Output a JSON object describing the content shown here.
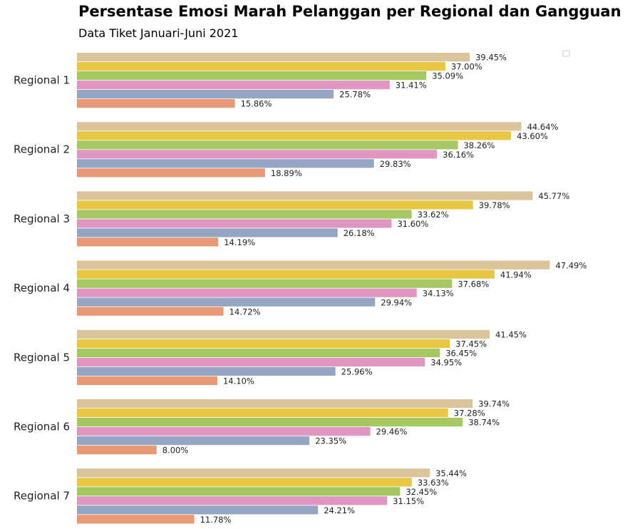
{
  "chart_data": {
    "type": "bar",
    "orientation": "horizontal",
    "title": "Persentase Emosi Marah Pelanggan per Regional dan Gangguan",
    "subtitle": "Data Tiket Januari-Juni 2021",
    "categories": [
      "Regional 1",
      "Regional 2",
      "Regional 3",
      "Regional 4",
      "Regional 5",
      "Regional 6",
      "Regional 7"
    ],
    "value_suffix": "%",
    "xlim": [
      0,
      52
    ],
    "grid": false,
    "legend": "top-right (empty)",
    "series": [
      {
        "color": "#d9c49c",
        "values": [
          39.45,
          44.64,
          45.77,
          47.49,
          41.45,
          39.74,
          35.44
        ]
      },
      {
        "color": "#e8c843",
        "values": [
          37.0,
          43.6,
          39.78,
          41.94,
          37.45,
          37.28,
          33.63
        ]
      },
      {
        "color": "#a5c863",
        "values": [
          35.09,
          38.26,
          33.62,
          37.68,
          36.45,
          38.74,
          32.45
        ]
      },
      {
        "color": "#df97c1",
        "values": [
          31.41,
          36.16,
          31.6,
          34.13,
          34.95,
          29.46,
          31.15
        ]
      },
      {
        "color": "#95a6c4",
        "values": [
          25.78,
          29.83,
          26.18,
          29.94,
          25.96,
          23.35,
          24.21
        ]
      },
      {
        "color": "#e99876",
        "values": [
          15.86,
          18.89,
          14.19,
          14.72,
          14.1,
          8.0,
          11.78
        ]
      }
    ]
  }
}
